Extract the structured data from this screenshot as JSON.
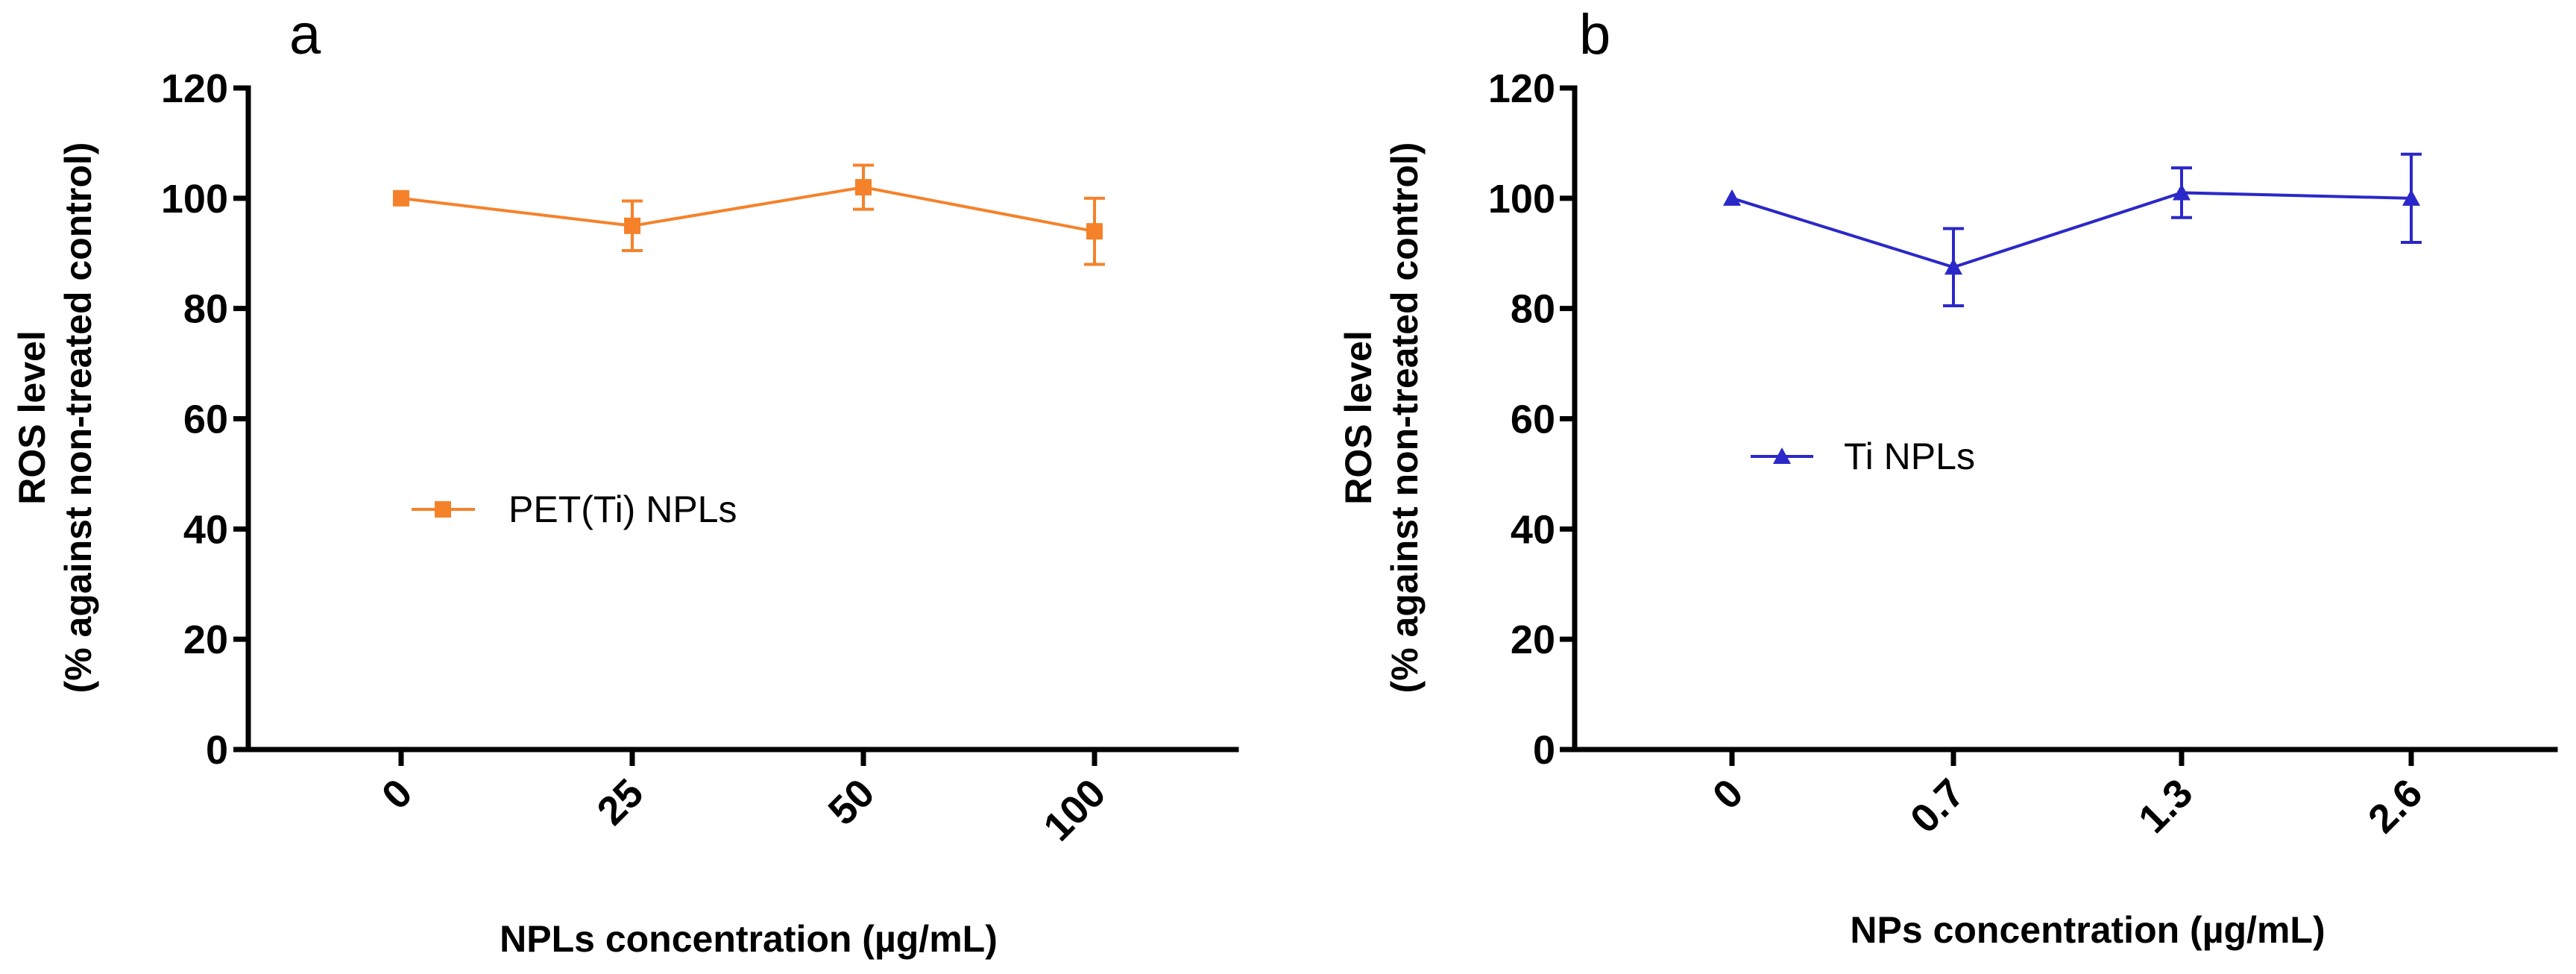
{
  "chart_data": [
    {
      "type": "line",
      "panel_label": "a",
      "categories": [
        "0",
        "25",
        "50",
        "100"
      ],
      "series": [
        {
          "name": "PET(Ti) NPLs",
          "color": "#f5822a",
          "marker": "square",
          "values": [
            100,
            95,
            102,
            94
          ],
          "errors": [
            0,
            4.5,
            4,
            6
          ]
        }
      ],
      "xlabel": "NPLs concentration (µg/mL)",
      "ylabel_line1": "ROS level",
      "ylabel_line2": "(% against non-treated control)",
      "yticks": [
        "0",
        "20",
        "40",
        "60",
        "80",
        "100",
        "120"
      ],
      "ylim": [
        0,
        120
      ],
      "legend": "center-left",
      "grid": false
    },
    {
      "type": "line",
      "panel_label": "b",
      "categories": [
        "0",
        "0.7",
        "1.3",
        "2.6"
      ],
      "series": [
        {
          "name": "Ti NPLs",
          "color": "#2a28c8",
          "marker": "triangle",
          "values": [
            100,
            87.5,
            101,
            100
          ],
          "errors": [
            0,
            7,
            4.5,
            8
          ]
        }
      ],
      "xlabel": "NPs concentration (µg/mL)",
      "ylabel_line1": "ROS level",
      "ylabel_line2": "(% against non-treated control)",
      "yticks": [
        "0",
        "20",
        "40",
        "60",
        "80",
        "100",
        "120"
      ],
      "ylim": [
        0,
        120
      ],
      "legend": "center-left",
      "grid": false
    }
  ]
}
